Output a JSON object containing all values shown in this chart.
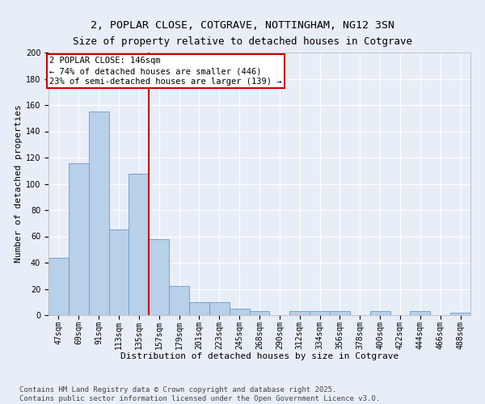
{
  "title": "2, POPLAR CLOSE, COTGRAVE, NOTTINGHAM, NG12 3SN",
  "subtitle": "Size of property relative to detached houses in Cotgrave",
  "xlabel": "Distribution of detached houses by size in Cotgrave",
  "ylabel": "Number of detached properties",
  "categories": [
    "47sqm",
    "69sqm",
    "91sqm",
    "113sqm",
    "135sqm",
    "157sqm",
    "179sqm",
    "201sqm",
    "223sqm",
    "245sqm",
    "268sqm",
    "290sqm",
    "312sqm",
    "334sqm",
    "356sqm",
    "378sqm",
    "400sqm",
    "422sqm",
    "444sqm",
    "466sqm",
    "488sqm"
  ],
  "values": [
    44,
    116,
    155,
    65,
    108,
    58,
    22,
    10,
    10,
    5,
    3,
    0,
    3,
    3,
    3,
    0,
    3,
    0,
    3,
    0,
    2
  ],
  "bar_color": "#b8d0e8",
  "bar_edge_color": "#6699cc",
  "red_line_x": 4.5,
  "property_label": "2 POPLAR CLOSE: 146sqm",
  "annotation_line1": "← 74% of detached houses are smaller (446)",
  "annotation_line2": "23% of semi-detached houses are larger (139) →",
  "annotation_box_color": "#ffffff",
  "annotation_box_edge": "#cc0000",
  "red_line_color": "#cc0000",
  "footer1": "Contains HM Land Registry data © Crown copyright and database right 2025.",
  "footer2": "Contains public sector information licensed under the Open Government Licence v3.0.",
  "background_color": "#e8eef8",
  "plot_bg_color": "#e8eef8",
  "ylim": [
    0,
    200
  ],
  "yticks": [
    0,
    20,
    40,
    60,
    80,
    100,
    120,
    140,
    160,
    180,
    200
  ],
  "title_fontsize": 9.5,
  "axis_label_fontsize": 8,
  "tick_fontsize": 7,
  "footer_fontsize": 6.5,
  "ann_fontsize": 7.5
}
